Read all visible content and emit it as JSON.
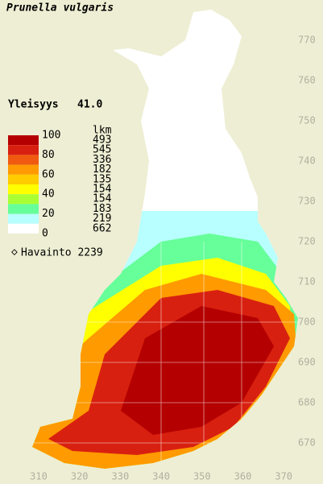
{
  "title": "Prunella vulgaris",
  "frequency": {
    "label": "Yleisyys",
    "value": "41.0"
  },
  "legend": {
    "scale_labels": [
      "100",
      "80",
      "60",
      "40",
      "20",
      "0"
    ],
    "count_header": "lkm",
    "counts": [
      "493",
      "545",
      "336",
      "182",
      "135",
      "154",
      "154",
      "183",
      "219",
      "662"
    ],
    "colors": [
      "#b40000",
      "#d82010",
      "#f05a10",
      "#ff9a00",
      "#ffcc00",
      "#ffff00",
      "#aaff33",
      "#66ff99",
      "#b8ffff",
      "#ffffff"
    ],
    "observation_label": "Havainto 2239"
  },
  "map": {
    "y_labels": [
      "770",
      "760",
      "750",
      "740",
      "730",
      "720",
      "710",
      "700",
      "690",
      "680",
      "670"
    ],
    "x_labels": [
      "310",
      "320",
      "330",
      "340",
      "350",
      "360",
      "370"
    ]
  }
}
